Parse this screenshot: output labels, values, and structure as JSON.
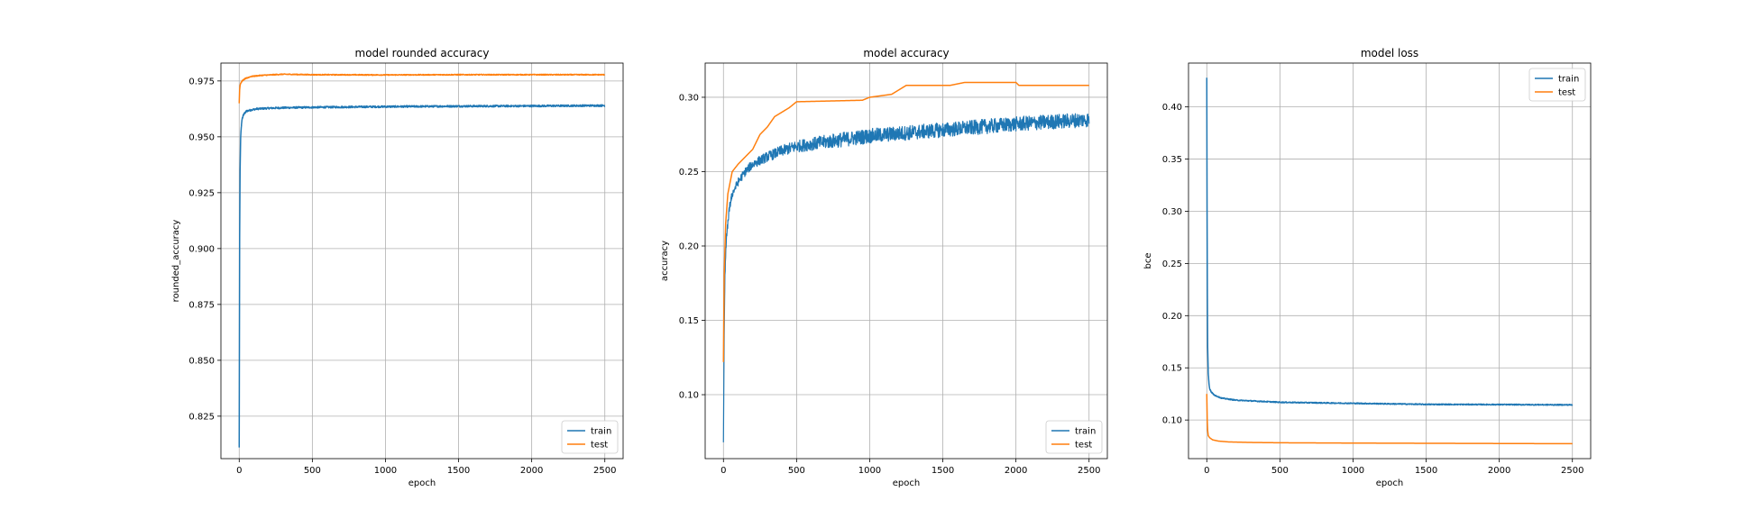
{
  "colors": {
    "train": "#1f77b4",
    "test": "#ff7f0e",
    "grid": "#b0b0b0",
    "axes": "#000000"
  },
  "chart_data": [
    {
      "type": "line",
      "title": "model rounded accuracy",
      "xlabel": "epoch",
      "ylabel": "rounded_accuracy",
      "xlim": [
        -125,
        2625
      ],
      "ylim": [
        0.806,
        0.983
      ],
      "xticks": [
        0,
        500,
        1000,
        1500,
        2000,
        2500
      ],
      "xtick_labels": [
        "0",
        "500",
        "1000",
        "1500",
        "2000",
        "2500"
      ],
      "yticks": [
        0.825,
        0.85,
        0.875,
        0.9,
        0.925,
        0.95,
        0.975
      ],
      "ytick_labels": [
        "0.825",
        "0.850",
        "0.875",
        "0.900",
        "0.925",
        "0.950",
        "0.975"
      ],
      "grid": true,
      "legend_position": "lower-right",
      "series": [
        {
          "name": "train",
          "color": "#1f77b4",
          "x": [
            0,
            3,
            6,
            10,
            15,
            20,
            30,
            50,
            80,
            120,
            200,
            300,
            500,
            1000,
            1500,
            2000,
            2500
          ],
          "y": [
            0.811,
            0.905,
            0.935,
            0.95,
            0.955,
            0.958,
            0.96,
            0.9615,
            0.962,
            0.9625,
            0.9628,
            0.963,
            0.9632,
            0.9635,
            0.9637,
            0.9638,
            0.964
          ],
          "noise": 0.0004
        },
        {
          "name": "test",
          "color": "#ff7f0e",
          "x": [
            0,
            3,
            6,
            10,
            20,
            40,
            80,
            150,
            300,
            500,
            1000,
            1500,
            2000,
            2500
          ],
          "y": [
            0.965,
            0.971,
            0.973,
            0.974,
            0.975,
            0.976,
            0.977,
            0.9775,
            0.978,
            0.9778,
            0.9777,
            0.9778,
            0.9778,
            0.9778
          ],
          "noise": 0.0002
        }
      ]
    },
    {
      "type": "line",
      "title": "model accuracy",
      "xlabel": "epoch",
      "ylabel": "accuracy",
      "xlim": [
        -125,
        2625
      ],
      "ylim": [
        0.057,
        0.323
      ],
      "xticks": [
        0,
        500,
        1000,
        1500,
        2000,
        2500
      ],
      "xtick_labels": [
        "0",
        "500",
        "1000",
        "1500",
        "2000",
        "2500"
      ],
      "yticks": [
        0.1,
        0.15,
        0.2,
        0.25,
        0.3
      ],
      "ytick_labels": [
        "0.10",
        "0.15",
        "0.20",
        "0.25",
        "0.30"
      ],
      "grid": true,
      "legend_position": "lower-right",
      "series": [
        {
          "name": "train",
          "color": "#1f77b4",
          "x": [
            0,
            5,
            10,
            20,
            40,
            60,
            100,
            150,
            200,
            300,
            400,
            500,
            700,
            1000,
            1500,
            2000,
            2500
          ],
          "y": [
            0.068,
            0.14,
            0.18,
            0.205,
            0.225,
            0.235,
            0.243,
            0.25,
            0.255,
            0.26,
            0.264,
            0.267,
            0.27,
            0.274,
            0.278,
            0.282,
            0.285
          ],
          "noise": 0.004
        },
        {
          "name": "test",
          "color": "#ff7f0e",
          "x": [
            0,
            5,
            15,
            30,
            60,
            100,
            150,
            200,
            250,
            300,
            350,
            400,
            450,
            500,
            950,
            1000,
            1150,
            1200,
            1250,
            1550,
            1650,
            1700,
            2000,
            2020,
            2500
          ],
          "y": [
            0.122,
            0.18,
            0.215,
            0.235,
            0.25,
            0.255,
            0.26,
            0.265,
            0.275,
            0.28,
            0.287,
            0.29,
            0.293,
            0.297,
            0.298,
            0.3,
            0.302,
            0.305,
            0.308,
            0.308,
            0.31,
            0.31,
            0.31,
            0.308,
            0.308
          ],
          "noise": 0.0
        }
      ]
    },
    {
      "type": "line",
      "title": "model loss",
      "xlabel": "epoch",
      "ylabel": "bce",
      "xlim": [
        -125,
        2625
      ],
      "ylim": [
        0.063,
        0.442
      ],
      "xticks": [
        0,
        500,
        1000,
        1500,
        2000,
        2500
      ],
      "xtick_labels": [
        "0",
        "500",
        "1000",
        "1500",
        "2000",
        "2500"
      ],
      "yticks": [
        0.1,
        0.15,
        0.2,
        0.25,
        0.3,
        0.35,
        0.4
      ],
      "ytick_labels": [
        "0.10",
        "0.15",
        "0.20",
        "0.25",
        "0.30",
        "0.35",
        "0.40"
      ],
      "grid": true,
      "legend_position": "upper-right",
      "series": [
        {
          "name": "train",
          "color": "#1f77b4",
          "x": [
            0,
            2,
            4,
            6,
            10,
            15,
            20,
            30,
            50,
            100,
            200,
            500,
            1000,
            1500,
            2000,
            2500
          ],
          "y": [
            0.428,
            0.3,
            0.22,
            0.17,
            0.145,
            0.135,
            0.13,
            0.127,
            0.124,
            0.121,
            0.119,
            0.117,
            0.116,
            0.115,
            0.1148,
            0.1145
          ],
          "noise": 0.0005
        },
        {
          "name": "test",
          "color": "#ff7f0e",
          "x": [
            0,
            3,
            6,
            10,
            20,
            40,
            80,
            150,
            300,
            500,
            1000,
            1500,
            2000,
            2500
          ],
          "y": [
            0.125,
            0.1,
            0.09,
            0.085,
            0.083,
            0.081,
            0.0798,
            0.079,
            0.0785,
            0.0782,
            0.0779,
            0.0777,
            0.0775,
            0.0773
          ],
          "noise": 0.0
        }
      ]
    }
  ]
}
